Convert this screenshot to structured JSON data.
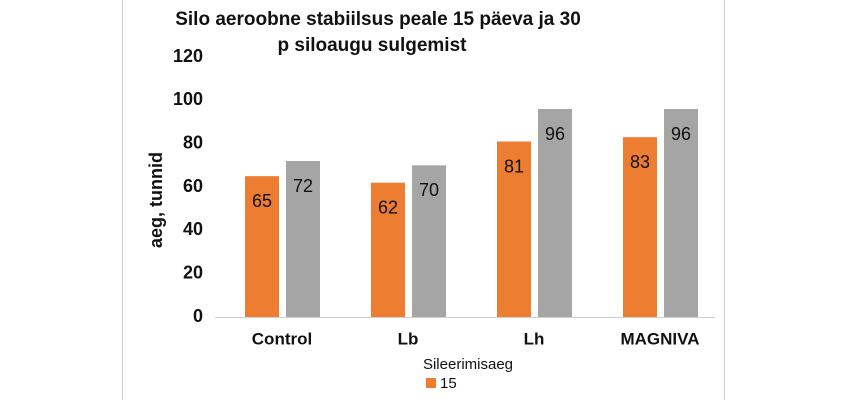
{
  "chart_data": {
    "type": "bar",
    "title": [
      "Silo aeroobne stabiilsus peale 15 päeva ja 30",
      "p siloaugu sulgemist"
    ],
    "y_label": "aeg, tunnid",
    "legend_title": "Sileerimisaeg",
    "categories": [
      "Control",
      "Lb",
      "Lh",
      "MAGNIVA"
    ],
    "series": [
      {
        "name": "15",
        "color": "#ed7d31",
        "values": [
          65,
          62,
          81,
          83
        ]
      },
      {
        "color": "#a5a5a5",
        "values": [
          72,
          70,
          96,
          96
        ]
      }
    ],
    "ylim": [
      0,
      120
    ],
    "yticks": [
      0,
      20,
      40,
      60,
      80,
      100,
      120
    ],
    "grid": false,
    "legend": "bottom"
  }
}
